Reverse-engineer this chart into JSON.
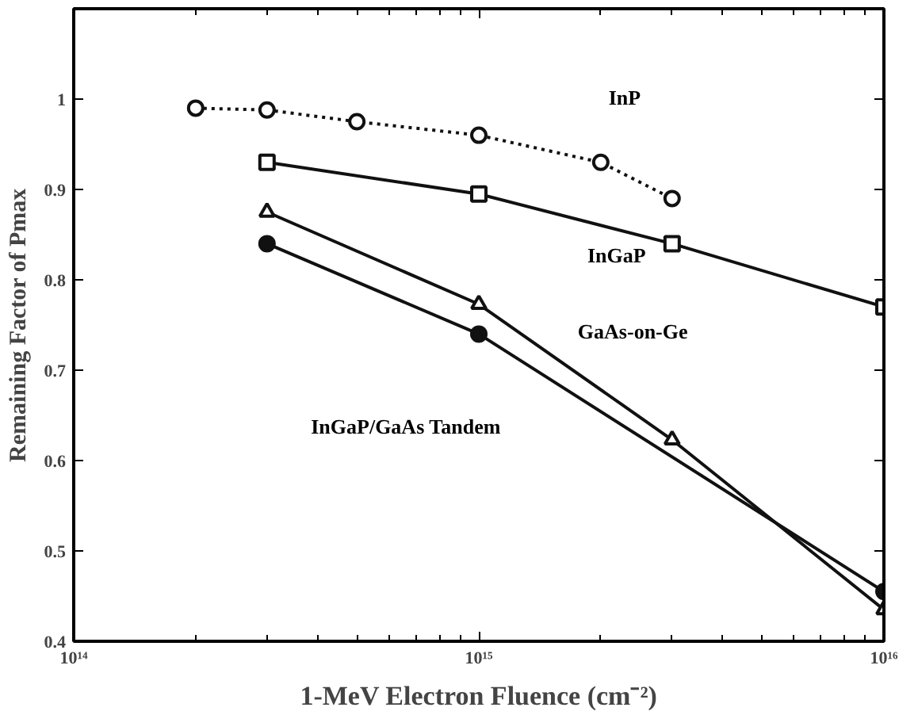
{
  "chart_data": {
    "type": "line",
    "xlabel": "1-MeV Electron Fluence (cm⁻²)",
    "ylabel": "Remaining Factor of Pmax",
    "log": "x",
    "xlim": [
      100000000000000.0,
      1e+16
    ],
    "ylim": [
      0.4,
      1.1
    ],
    "xticks": [
      {
        "value": 100000000000000.0,
        "label": "10¹⁴"
      },
      {
        "value": 1000000000000000.0,
        "label": "10¹⁵"
      },
      {
        "value": 1e+16,
        "label": "10¹⁶"
      }
    ],
    "yticks": [
      0.4,
      0.5,
      0.6,
      0.7,
      0.8,
      0.9,
      1
    ],
    "grid": false,
    "series": [
      {
        "color": "#111111",
        "marker": "circle",
        "line_style": "dotted",
        "x": [
          200000000000000.0,
          300000000000000.0,
          500000000000000.0,
          1000000000000000.0,
          2000000000000000.0,
          3000000000000000.0
        ],
        "values": [
          0.99,
          0.988,
          0.975,
          0.96,
          0.93,
          0.89
        ]
      },
      {
        "color": "#111111",
        "marker": "square",
        "line_style": "solid",
        "x": [
          300000000000000.0,
          1000000000000000.0,
          3000000000000000.0,
          1e+16
        ],
        "values": [
          0.93,
          0.895,
          0.84,
          0.77
        ]
      },
      {
        "color": "#111111",
        "marker": "triangle",
        "line_style": "solid",
        "x": [
          300000000000000.0,
          1000000000000000.0,
          3000000000000000.0,
          1e+16
        ],
        "values": [
          0.875,
          0.773,
          0.623,
          0.435
        ]
      },
      {
        "color": "#111111",
        "marker": "circle",
        "line_style": "solid",
        "x": [
          300000000000000.0,
          1000000000000000.0,
          1e+16
        ],
        "values": [
          0.84,
          0.74,
          0.455
        ]
      }
    ],
    "annotations": [
      "InP",
      "InGaP",
      "GaAs-on-Ge",
      "InGaP/GaAs Tandem"
    ]
  }
}
